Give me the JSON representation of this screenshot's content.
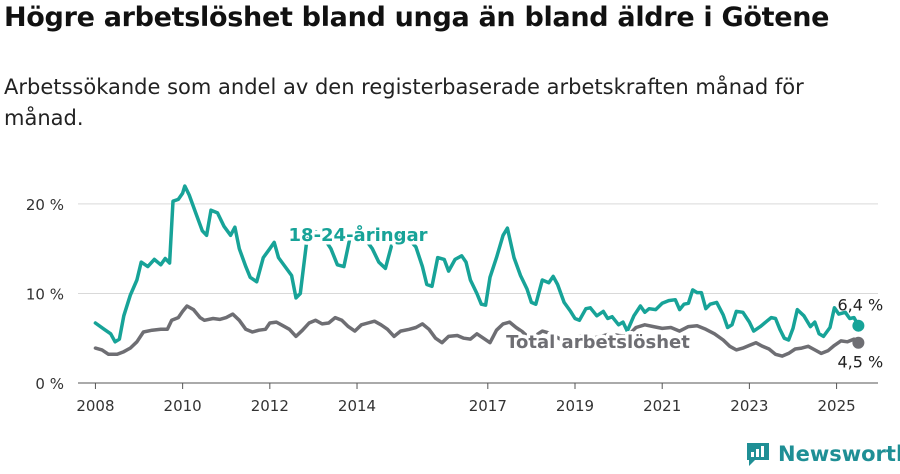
{
  "header": {
    "title": "Högre arbetslöshet bland unga än bland äldre i Götene",
    "subtitle": "Arbetssökande som andel av den registerbaserade arbetskraften månad för månad."
  },
  "brand": {
    "name": "Newsworthy"
  },
  "chart_data": {
    "type": "line",
    "y_axis": {
      "min": 0,
      "max": 22,
      "ticks": [
        0,
        10,
        20
      ],
      "tick_labels": [
        "0 %",
        "10 %",
        "20 %"
      ]
    },
    "x_axis": {
      "min": 2007.6,
      "max": 2025.95,
      "ticks": [
        2008,
        2010,
        2012,
        2014,
        2017,
        2019,
        2021,
        2023,
        2025
      ],
      "tick_labels": [
        "2008",
        "2010",
        "2012",
        "2014",
        "2017",
        "2019",
        "2021",
        "2023",
        "2025"
      ]
    },
    "grid": true,
    "series": [
      {
        "name": "18-24-åringar",
        "color": "#17a398",
        "end_label": "6,4 %",
        "points": [
          [
            2008.0,
            6.7
          ],
          [
            2008.2,
            6.0
          ],
          [
            2008.35,
            5.5
          ],
          [
            2008.45,
            4.6
          ],
          [
            2008.55,
            4.9
          ],
          [
            2008.65,
            7.5
          ],
          [
            2008.8,
            9.8
          ],
          [
            2008.95,
            11.5
          ],
          [
            2009.05,
            13.5
          ],
          [
            2009.2,
            13.0
          ],
          [
            2009.35,
            13.8
          ],
          [
            2009.5,
            13.2
          ],
          [
            2009.6,
            13.9
          ],
          [
            2009.7,
            13.4
          ],
          [
            2009.78,
            20.3
          ],
          [
            2009.9,
            20.5
          ],
          [
            2010.0,
            21.2
          ],
          [
            2010.05,
            22.0
          ],
          [
            2010.15,
            21.0
          ],
          [
            2010.3,
            19.0
          ],
          [
            2010.45,
            17.0
          ],
          [
            2010.55,
            16.5
          ],
          [
            2010.65,
            19.3
          ],
          [
            2010.8,
            19.0
          ],
          [
            2010.95,
            17.5
          ],
          [
            2011.1,
            16.5
          ],
          [
            2011.2,
            17.4
          ],
          [
            2011.3,
            15.0
          ],
          [
            2011.45,
            13.0
          ],
          [
            2011.55,
            11.8
          ],
          [
            2011.7,
            11.3
          ],
          [
            2011.85,
            14.0
          ],
          [
            2012.0,
            15.0
          ],
          [
            2012.1,
            15.7
          ],
          [
            2012.2,
            14.0
          ],
          [
            2012.35,
            13.0
          ],
          [
            2012.5,
            12.0
          ],
          [
            2012.6,
            9.5
          ],
          [
            2012.7,
            10.0
          ],
          [
            2012.85,
            16.0
          ],
          [
            2013.0,
            17.0
          ],
          [
            2013.2,
            16.5
          ],
          [
            2013.4,
            15.0
          ],
          [
            2013.55,
            13.2
          ],
          [
            2013.7,
            13.0
          ],
          [
            2013.85,
            16.5
          ],
          [
            2014.0,
            17.0
          ],
          [
            2014.2,
            16.0
          ],
          [
            2014.35,
            15.0
          ],
          [
            2014.5,
            13.5
          ],
          [
            2014.65,
            12.8
          ],
          [
            2014.8,
            15.5
          ],
          [
            2015.0,
            16.5
          ],
          [
            2015.2,
            16.0
          ],
          [
            2015.35,
            15.2
          ],
          [
            2015.5,
            13.0
          ],
          [
            2015.6,
            11.0
          ],
          [
            2015.72,
            10.8
          ],
          [
            2015.85,
            14.0
          ],
          [
            2016.0,
            13.8
          ],
          [
            2016.1,
            12.5
          ],
          [
            2016.25,
            13.8
          ],
          [
            2016.4,
            14.2
          ],
          [
            2016.5,
            13.5
          ],
          [
            2016.6,
            11.5
          ],
          [
            2016.75,
            10.0
          ],
          [
            2016.85,
            8.8
          ],
          [
            2016.95,
            8.7
          ],
          [
            2017.05,
            11.8
          ],
          [
            2017.2,
            14.0
          ],
          [
            2017.35,
            16.5
          ],
          [
            2017.45,
            17.3
          ],
          [
            2017.6,
            14.0
          ],
          [
            2017.75,
            12.0
          ],
          [
            2017.9,
            10.5
          ],
          [
            2018.0,
            9.0
          ],
          [
            2018.1,
            8.8
          ],
          [
            2018.25,
            11.5
          ],
          [
            2018.4,
            11.2
          ],
          [
            2018.5,
            11.9
          ],
          [
            2018.6,
            11.0
          ],
          [
            2018.75,
            9.0
          ],
          [
            2018.9,
            8.0
          ],
          [
            2019.0,
            7.2
          ],
          [
            2019.1,
            7.0
          ],
          [
            2019.25,
            8.3
          ],
          [
            2019.35,
            8.4
          ],
          [
            2019.5,
            7.5
          ],
          [
            2019.65,
            8.0
          ],
          [
            2019.75,
            7.2
          ],
          [
            2019.85,
            7.4
          ],
          [
            2020.0,
            6.5
          ],
          [
            2020.1,
            6.8
          ],
          [
            2020.2,
            5.8
          ],
          [
            2020.35,
            7.5
          ],
          [
            2020.5,
            8.6
          ],
          [
            2020.6,
            7.9
          ],
          [
            2020.7,
            8.3
          ],
          [
            2020.85,
            8.2
          ],
          [
            2021.0,
            8.9
          ],
          [
            2021.15,
            9.2
          ],
          [
            2021.3,
            9.3
          ],
          [
            2021.4,
            8.2
          ],
          [
            2021.5,
            8.8
          ],
          [
            2021.6,
            8.9
          ],
          [
            2021.7,
            10.4
          ],
          [
            2021.8,
            10.1
          ],
          [
            2021.9,
            10.1
          ],
          [
            2022.0,
            8.3
          ],
          [
            2022.1,
            8.8
          ],
          [
            2022.25,
            9.0
          ],
          [
            2022.4,
            7.6
          ],
          [
            2022.5,
            6.2
          ],
          [
            2022.6,
            6.5
          ],
          [
            2022.7,
            8.0
          ],
          [
            2022.85,
            7.9
          ],
          [
            2023.0,
            6.8
          ],
          [
            2023.1,
            5.8
          ],
          [
            2023.25,
            6.3
          ],
          [
            2023.4,
            6.9
          ],
          [
            2023.5,
            7.3
          ],
          [
            2023.6,
            7.2
          ],
          [
            2023.7,
            6.0
          ],
          [
            2023.8,
            5.0
          ],
          [
            2023.9,
            4.8
          ],
          [
            2024.0,
            6.1
          ],
          [
            2024.1,
            8.2
          ],
          [
            2024.25,
            7.5
          ],
          [
            2024.4,
            6.3
          ],
          [
            2024.5,
            6.8
          ],
          [
            2024.6,
            5.5
          ],
          [
            2024.7,
            5.2
          ],
          [
            2024.85,
            6.2
          ],
          [
            2024.95,
            8.4
          ],
          [
            2025.05,
            7.7
          ],
          [
            2025.2,
            7.9
          ],
          [
            2025.3,
            7.2
          ],
          [
            2025.4,
            7.3
          ],
          [
            2025.5,
            6.4
          ]
        ]
      },
      {
        "name": "Total arbetslöshet",
        "color": "#6e6e73",
        "end_label": "4,5 %",
        "points": [
          [
            2008.0,
            3.9
          ],
          [
            2008.15,
            3.7
          ],
          [
            2008.3,
            3.2
          ],
          [
            2008.5,
            3.2
          ],
          [
            2008.65,
            3.5
          ],
          [
            2008.8,
            3.9
          ],
          [
            2008.95,
            4.6
          ],
          [
            2009.1,
            5.7
          ],
          [
            2009.3,
            5.9
          ],
          [
            2009.5,
            6.0
          ],
          [
            2009.65,
            6.0
          ],
          [
            2009.75,
            7.0
          ],
          [
            2009.9,
            7.3
          ],
          [
            2010.0,
            8.0
          ],
          [
            2010.1,
            8.6
          ],
          [
            2010.25,
            8.2
          ],
          [
            2010.4,
            7.3
          ],
          [
            2010.5,
            7.0
          ],
          [
            2010.7,
            7.2
          ],
          [
            2010.85,
            7.1
          ],
          [
            2011.0,
            7.3
          ],
          [
            2011.15,
            7.7
          ],
          [
            2011.3,
            7.0
          ],
          [
            2011.45,
            6.0
          ],
          [
            2011.6,
            5.7
          ],
          [
            2011.75,
            5.9
          ],
          [
            2011.9,
            6.0
          ],
          [
            2012.0,
            6.7
          ],
          [
            2012.15,
            6.8
          ],
          [
            2012.3,
            6.4
          ],
          [
            2012.45,
            6.0
          ],
          [
            2012.6,
            5.2
          ],
          [
            2012.75,
            5.9
          ],
          [
            2012.9,
            6.7
          ],
          [
            2013.05,
            7.0
          ],
          [
            2013.2,
            6.6
          ],
          [
            2013.35,
            6.7
          ],
          [
            2013.5,
            7.3
          ],
          [
            2013.65,
            7.0
          ],
          [
            2013.8,
            6.3
          ],
          [
            2013.95,
            5.8
          ],
          [
            2014.1,
            6.5
          ],
          [
            2014.25,
            6.7
          ],
          [
            2014.4,
            6.9
          ],
          [
            2014.55,
            6.5
          ],
          [
            2014.7,
            6.0
          ],
          [
            2014.85,
            5.2
          ],
          [
            2015.0,
            5.8
          ],
          [
            2015.2,
            6.0
          ],
          [
            2015.35,
            6.2
          ],
          [
            2015.5,
            6.6
          ],
          [
            2015.65,
            6.0
          ],
          [
            2015.8,
            5.0
          ],
          [
            2015.95,
            4.5
          ],
          [
            2016.1,
            5.2
          ],
          [
            2016.3,
            5.3
          ],
          [
            2016.45,
            5.0
          ],
          [
            2016.6,
            4.9
          ],
          [
            2016.75,
            5.5
          ],
          [
            2016.9,
            5.0
          ],
          [
            2017.05,
            4.5
          ],
          [
            2017.2,
            5.9
          ],
          [
            2017.35,
            6.6
          ],
          [
            2017.5,
            6.8
          ],
          [
            2017.65,
            6.2
          ],
          [
            2017.8,
            5.7
          ],
          [
            2017.95,
            5.0
          ],
          [
            2018.1,
            5.3
          ],
          [
            2018.25,
            5.8
          ],
          [
            2018.4,
            5.6
          ],
          [
            2018.55,
            5.2
          ],
          [
            2018.7,
            4.8
          ],
          [
            2018.85,
            4.7
          ],
          [
            2019.0,
            5.1
          ],
          [
            2019.2,
            5.3
          ],
          [
            2019.4,
            5.0
          ],
          [
            2019.6,
            5.2
          ],
          [
            2019.8,
            5.5
          ],
          [
            2020.0,
            5.3
          ],
          [
            2020.2,
            5.2
          ],
          [
            2020.4,
            6.2
          ],
          [
            2020.6,
            6.5
          ],
          [
            2020.8,
            6.3
          ],
          [
            2021.0,
            6.1
          ],
          [
            2021.2,
            6.2
          ],
          [
            2021.4,
            5.8
          ],
          [
            2021.6,
            6.3
          ],
          [
            2021.8,
            6.4
          ],
          [
            2022.0,
            6.0
          ],
          [
            2022.2,
            5.5
          ],
          [
            2022.4,
            4.8
          ],
          [
            2022.55,
            4.1
          ],
          [
            2022.7,
            3.7
          ],
          [
            2022.85,
            3.9
          ],
          [
            2023.0,
            4.2
          ],
          [
            2023.15,
            4.5
          ],
          [
            2023.3,
            4.1
          ],
          [
            2023.45,
            3.8
          ],
          [
            2023.6,
            3.2
          ],
          [
            2023.75,
            3.0
          ],
          [
            2023.9,
            3.3
          ],
          [
            2024.05,
            3.8
          ],
          [
            2024.2,
            3.9
          ],
          [
            2024.35,
            4.1
          ],
          [
            2024.5,
            3.7
          ],
          [
            2024.65,
            3.3
          ],
          [
            2024.8,
            3.6
          ],
          [
            2024.95,
            4.2
          ],
          [
            2025.1,
            4.7
          ],
          [
            2025.25,
            4.6
          ],
          [
            2025.4,
            4.9
          ],
          [
            2025.5,
            4.5
          ]
        ]
      }
    ]
  }
}
